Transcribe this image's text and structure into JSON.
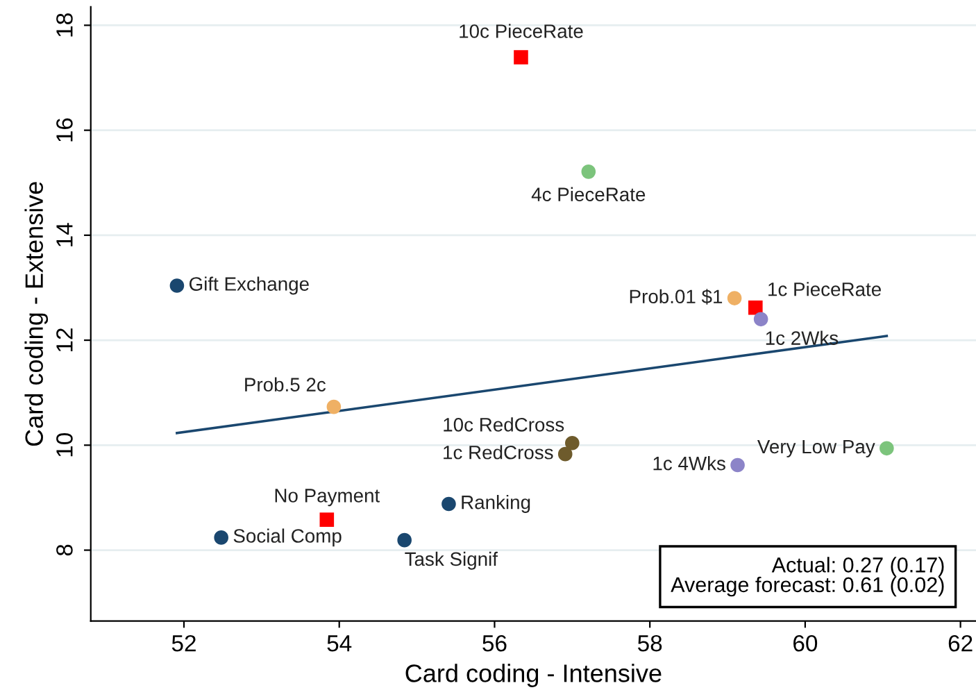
{
  "chart_data": {
    "type": "scatter",
    "xlabel": "Card coding - Intensive",
    "ylabel": "Card coding - Extensive",
    "xlim": [
      50.8,
      62.2
    ],
    "ylim": [
      6.65,
      18.35
    ],
    "xticks": [
      52,
      54,
      56,
      58,
      60,
      62
    ],
    "yticks": [
      8,
      10,
      12,
      14,
      16,
      18
    ],
    "grid": "y",
    "legend": false,
    "series": [
      {
        "marker": "circle",
        "color": "#1a476f",
        "x": [
          51.91,
          55.41,
          52.48,
          54.84
        ],
        "values": [
          13.04,
          8.88,
          8.24,
          8.19
        ]
      },
      {
        "marker": "square",
        "color": "#ff0000",
        "x": [
          56.34,
          59.36,
          53.84
        ],
        "values": [
          17.39,
          12.62,
          8.58
        ]
      },
      {
        "marker": "circle",
        "color": "#7cc47c",
        "x": [
          57.21,
          61.05
        ],
        "values": [
          15.21,
          9.94
        ]
      },
      {
        "marker": "circle",
        "color": "#efb064",
        "x": [
          59.09,
          53.93
        ],
        "values": [
          12.8,
          10.73
        ]
      },
      {
        "marker": "circle",
        "color": "#6e5b2c",
        "x": [
          57.0,
          56.91
        ],
        "values": [
          10.04,
          9.83
        ]
      },
      {
        "marker": "circle",
        "color": "#8c84c8",
        "x": [
          59.43,
          59.13
        ],
        "values": [
          12.4,
          9.62
        ]
      },
      {
        "type": "line",
        "marker": "none",
        "line_style": "solid",
        "color": "#1a476f",
        "x": [
          51.91,
          61.05
        ],
        "values": [
          10.23,
          12.08
        ]
      }
    ],
    "annotations": [
      {
        "text": "10c PieceRate",
        "x": 56.34,
        "y": 17.39
      },
      {
        "text": "4c PieceRate",
        "x": 57.21,
        "y": 15.21
      },
      {
        "text": "Gift Exchange",
        "x": 51.91,
        "y": 13.04
      },
      {
        "text": "Prob.01 $1",
        "x": 59.09,
        "y": 12.8
      },
      {
        "text": "1c PieceRate",
        "x": 59.36,
        "y": 12.62
      },
      {
        "text": "1c 2Wks",
        "x": 59.43,
        "y": 12.4
      },
      {
        "text": "Prob.5 2c",
        "x": 53.93,
        "y": 10.73
      },
      {
        "text": "10c RedCross",
        "x": 57.0,
        "y": 10.04
      },
      {
        "text": "1c RedCross",
        "x": 56.91,
        "y": 9.83
      },
      {
        "text": "1c 4Wks",
        "x": 59.13,
        "y": 9.62
      },
      {
        "text": "Very Low Pay",
        "x": 61.05,
        "y": 9.94
      },
      {
        "text": "No Payment",
        "x": 53.84,
        "y": 8.58
      },
      {
        "text": "Ranking",
        "x": 55.41,
        "y": 8.88
      },
      {
        "text": "Social Comp",
        "x": 52.48,
        "y": 8.24
      },
      {
        "text": "Task Signif",
        "x": 54.84,
        "y": 8.19
      },
      "Actual: 0.27 (0.17)\nAverage forecast: 0.61 (0.02)"
    ]
  }
}
